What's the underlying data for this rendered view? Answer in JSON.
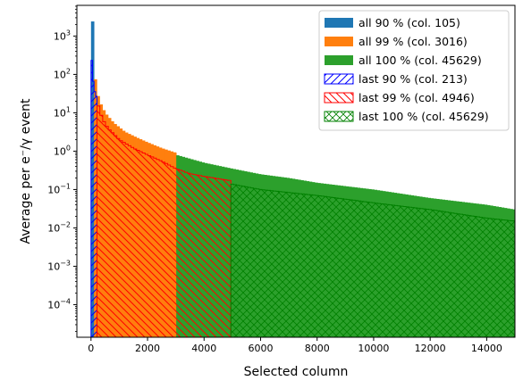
{
  "chart_data": {
    "type": "bar",
    "xlabel": "Selected column",
    "ylabel": "Average per e⁻/γ event",
    "xlim": [
      -500,
      15000
    ],
    "ylim_exponent": [
      -4.85,
      3.8
    ],
    "yscale": "log",
    "bin_width": 100,
    "x_ticks": [
      0,
      2000,
      4000,
      6000,
      8000,
      10000,
      12000,
      14000
    ],
    "x_tick_labels": [
      "0",
      "2000",
      "4000",
      "6000",
      "8000",
      "10000",
      "12000",
      "14000"
    ],
    "y_tick_exponents": [
      -4,
      -3,
      -2,
      -1,
      0,
      1,
      2,
      3
    ],
    "y_tick_base": "10",
    "legend_position": "top-right",
    "series": [
      {
        "name": "all 90 % (col. 105)",
        "style": "filled",
        "color": "#1f77b4",
        "x_start": 0,
        "x_end": 105,
        "points": [
          [
            0,
            2400
          ],
          [
            50,
            2400
          ],
          [
            105,
            2400
          ]
        ]
      },
      {
        "name": "all 99 % (col. 3016)",
        "style": "filled",
        "color": "#ff7f0e",
        "x_start": 105,
        "x_end": 3016,
        "points": [
          [
            105,
            500
          ],
          [
            150,
            80
          ],
          [
            200,
            40
          ],
          [
            300,
            20
          ],
          [
            500,
            10
          ],
          [
            800,
            5.5
          ],
          [
            1200,
            3.2
          ],
          [
            1600,
            2.3
          ],
          [
            2000,
            1.7
          ],
          [
            2500,
            1.2
          ],
          [
            3016,
            0.9
          ]
        ]
      },
      {
        "name": "all 100 % (col. 45629)",
        "style": "filled",
        "color": "#2ca02c",
        "x_start": 3016,
        "x_end": 15000,
        "points": [
          [
            3016,
            0.8
          ],
          [
            4000,
            0.5
          ],
          [
            5000,
            0.35
          ],
          [
            6000,
            0.25
          ],
          [
            7000,
            0.2
          ],
          [
            8000,
            0.15
          ],
          [
            10000,
            0.1
          ],
          [
            12000,
            0.06
          ],
          [
            14000,
            0.04
          ],
          [
            15000,
            0.03
          ]
        ]
      },
      {
        "name": "last 90 % (col. 213)",
        "style": "hatched",
        "hatch": "diag-right",
        "color": "#0000ff",
        "x_start": 0,
        "x_end": 213,
        "points": [
          [
            0,
            600
          ],
          [
            50,
            100
          ],
          [
            100,
            50
          ],
          [
            150,
            30
          ],
          [
            213,
            25
          ]
        ]
      },
      {
        "name": "last 99 % (col. 4946)",
        "style": "hatched",
        "hatch": "diag-left",
        "color": "#ff0000",
        "x_start": 213,
        "x_end": 4946,
        "points": [
          [
            213,
            20
          ],
          [
            400,
            7
          ],
          [
            600,
            4
          ],
          [
            1000,
            2
          ],
          [
            1500,
            1.2
          ],
          [
            2000,
            0.8
          ],
          [
            2500,
            0.55
          ],
          [
            3000,
            0.35
          ],
          [
            3500,
            0.26
          ],
          [
            4000,
            0.22
          ],
          [
            4946,
            0.17
          ]
        ]
      },
      {
        "name": "last 100 % (col. 45629)",
        "style": "hatched",
        "hatch": "cross",
        "color": "#008000",
        "x_start": 4946,
        "x_end": 15000,
        "points": [
          [
            4946,
            0.14
          ],
          [
            6000,
            0.1
          ],
          [
            8000,
            0.07
          ],
          [
            10000,
            0.045
          ],
          [
            12000,
            0.03
          ],
          [
            14000,
            0.018
          ],
          [
            15000,
            0.015
          ]
        ]
      }
    ]
  }
}
